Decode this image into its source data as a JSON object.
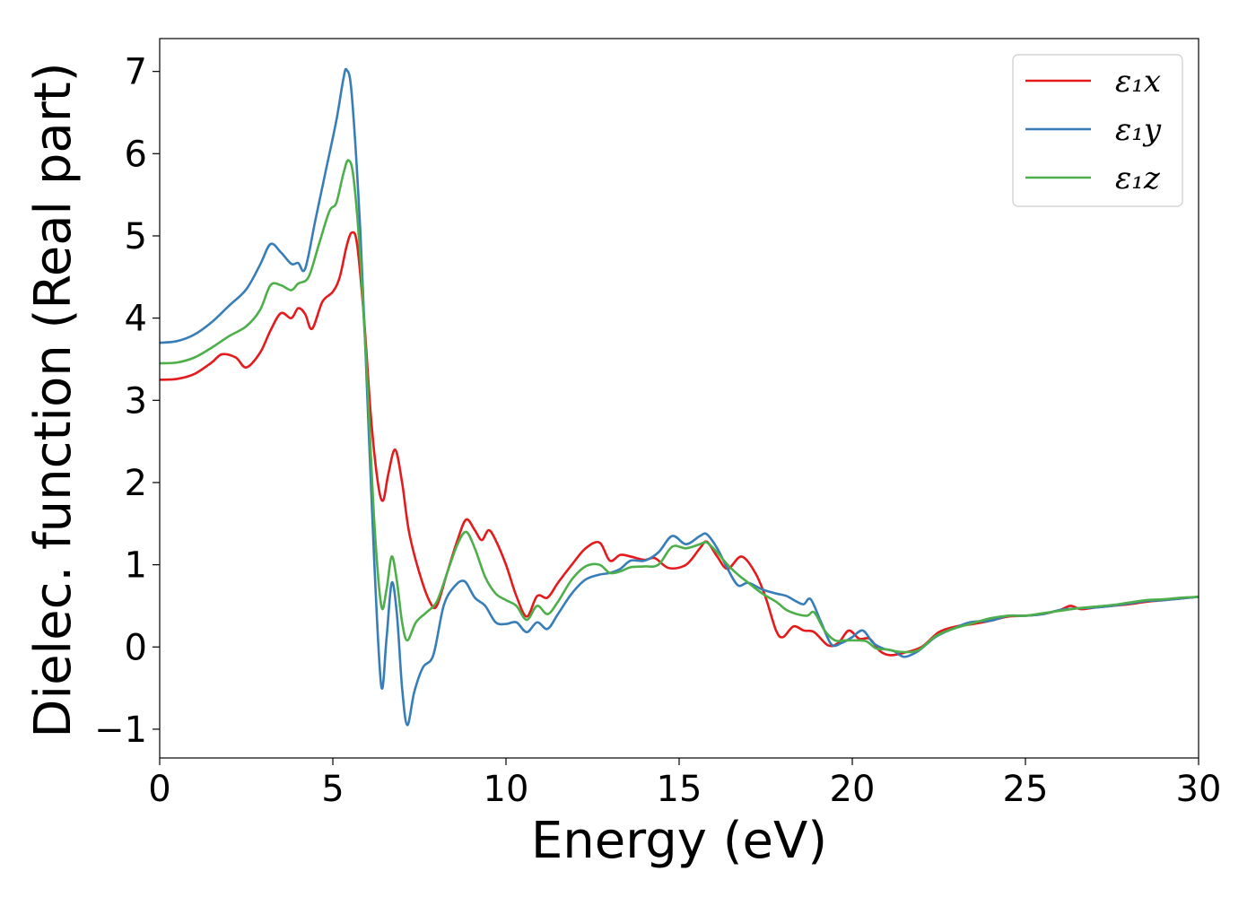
{
  "chart_data": {
    "type": "line",
    "title": "",
    "xlabel": "Energy (eV)",
    "ylabel": "Dielec. function (Real part)",
    "xlim": [
      0,
      30
    ],
    "ylim": [
      -1.35,
      7.4
    ],
    "xticks": [
      0,
      5,
      10,
      15,
      20,
      25,
      30
    ],
    "xtick_labels": [
      "0",
      "5",
      "10",
      "15",
      "20",
      "25",
      "30"
    ],
    "yticks": [
      -1,
      0,
      1,
      2,
      3,
      4,
      5,
      6,
      7
    ],
    "ytick_labels": [
      "−1",
      "0",
      "1",
      "2",
      "3",
      "4",
      "5",
      "6",
      "7"
    ],
    "grid": false,
    "legend_position": "top-right",
    "series": [
      {
        "name": "ε₁x",
        "color": "#e41a1c",
        "points": [
          [
            0,
            3.25
          ],
          [
            0.5,
            3.26
          ],
          [
            1.0,
            3.32
          ],
          [
            1.5,
            3.46
          ],
          [
            1.8,
            3.56
          ],
          [
            2.2,
            3.52
          ],
          [
            2.5,
            3.4
          ],
          [
            2.9,
            3.58
          ],
          [
            3.2,
            3.85
          ],
          [
            3.5,
            4.06
          ],
          [
            3.8,
            4.0
          ],
          [
            4.0,
            4.12
          ],
          [
            4.2,
            4.05
          ],
          [
            4.4,
            3.87
          ],
          [
            4.7,
            4.2
          ],
          [
            5.0,
            4.32
          ],
          [
            5.2,
            4.5
          ],
          [
            5.4,
            4.88
          ],
          [
            5.55,
            5.04
          ],
          [
            5.7,
            4.9
          ],
          [
            5.9,
            4.0
          ],
          [
            6.1,
            2.8
          ],
          [
            6.3,
            2.0
          ],
          [
            6.45,
            1.78
          ],
          [
            6.6,
            2.1
          ],
          [
            6.8,
            2.4
          ],
          [
            7.0,
            2.0
          ],
          [
            7.2,
            1.4
          ],
          [
            7.5,
            0.9
          ],
          [
            7.8,
            0.55
          ],
          [
            8.0,
            0.5
          ],
          [
            8.3,
            0.9
          ],
          [
            8.6,
            1.3
          ],
          [
            8.85,
            1.55
          ],
          [
            9.1,
            1.42
          ],
          [
            9.3,
            1.3
          ],
          [
            9.5,
            1.42
          ],
          [
            9.7,
            1.3
          ],
          [
            10.0,
            1.0
          ],
          [
            10.3,
            0.62
          ],
          [
            10.6,
            0.37
          ],
          [
            10.9,
            0.62
          ],
          [
            11.2,
            0.6
          ],
          [
            11.5,
            0.78
          ],
          [
            11.9,
            1.0
          ],
          [
            12.3,
            1.2
          ],
          [
            12.7,
            1.27
          ],
          [
            13.0,
            1.05
          ],
          [
            13.3,
            1.12
          ],
          [
            13.6,
            1.1
          ],
          [
            14.0,
            1.06
          ],
          [
            14.3,
            1.08
          ],
          [
            14.7,
            0.96
          ],
          [
            15.2,
            1.0
          ],
          [
            15.6,
            1.2
          ],
          [
            15.8,
            1.28
          ],
          [
            16.1,
            1.1
          ],
          [
            16.4,
            0.95
          ],
          [
            16.8,
            1.1
          ],
          [
            17.2,
            0.9
          ],
          [
            17.5,
            0.6
          ],
          [
            17.8,
            0.2
          ],
          [
            18.0,
            0.12
          ],
          [
            18.3,
            0.25
          ],
          [
            18.6,
            0.2
          ],
          [
            18.9,
            0.18
          ],
          [
            19.3,
            0.02
          ],
          [
            19.6,
            0.05
          ],
          [
            19.9,
            0.2
          ],
          [
            20.2,
            0.1
          ],
          [
            20.5,
            0.1
          ],
          [
            20.8,
            -0.05
          ],
          [
            21.1,
            -0.1
          ],
          [
            21.5,
            -0.07
          ],
          [
            22.0,
            0.0
          ],
          [
            22.5,
            0.18
          ],
          [
            23.0,
            0.25
          ],
          [
            23.5,
            0.28
          ],
          [
            24.0,
            0.32
          ],
          [
            24.5,
            0.37
          ],
          [
            25.0,
            0.38
          ],
          [
            25.5,
            0.4
          ],
          [
            26.0,
            0.45
          ],
          [
            26.3,
            0.5
          ],
          [
            26.6,
            0.46
          ],
          [
            27.0,
            0.48
          ],
          [
            27.5,
            0.5
          ],
          [
            28.0,
            0.52
          ],
          [
            28.5,
            0.55
          ],
          [
            29.0,
            0.57
          ],
          [
            29.5,
            0.59
          ],
          [
            30.0,
            0.61
          ]
        ]
      },
      {
        "name": "ε₁y",
        "color": "#377eb8",
        "points": [
          [
            0,
            3.7
          ],
          [
            0.5,
            3.72
          ],
          [
            1.0,
            3.8
          ],
          [
            1.5,
            3.95
          ],
          [
            2.0,
            4.15
          ],
          [
            2.5,
            4.35
          ],
          [
            2.9,
            4.65
          ],
          [
            3.2,
            4.9
          ],
          [
            3.5,
            4.8
          ],
          [
            3.8,
            4.66
          ],
          [
            4.0,
            4.67
          ],
          [
            4.2,
            4.6
          ],
          [
            4.5,
            5.2
          ],
          [
            4.8,
            5.8
          ],
          [
            5.1,
            6.4
          ],
          [
            5.3,
            6.9
          ],
          [
            5.4,
            7.02
          ],
          [
            5.55,
            6.7
          ],
          [
            5.8,
            5.0
          ],
          [
            6.0,
            3.0
          ],
          [
            6.2,
            1.0
          ],
          [
            6.4,
            -0.48
          ],
          [
            6.55,
            0.1
          ],
          [
            6.7,
            0.78
          ],
          [
            6.85,
            0.4
          ],
          [
            7.0,
            -0.5
          ],
          [
            7.15,
            -0.95
          ],
          [
            7.35,
            -0.55
          ],
          [
            7.6,
            -0.25
          ],
          [
            7.9,
            -0.1
          ],
          [
            8.2,
            0.5
          ],
          [
            8.5,
            0.73
          ],
          [
            8.8,
            0.8
          ],
          [
            9.1,
            0.6
          ],
          [
            9.4,
            0.5
          ],
          [
            9.7,
            0.3
          ],
          [
            10.0,
            0.28
          ],
          [
            10.3,
            0.3
          ],
          [
            10.6,
            0.18
          ],
          [
            10.9,
            0.3
          ],
          [
            11.2,
            0.22
          ],
          [
            11.5,
            0.4
          ],
          [
            11.9,
            0.65
          ],
          [
            12.3,
            0.82
          ],
          [
            12.7,
            0.88
          ],
          [
            13.0,
            0.9
          ],
          [
            13.3,
            0.95
          ],
          [
            13.6,
            1.05
          ],
          [
            14.0,
            1.05
          ],
          [
            14.4,
            1.15
          ],
          [
            14.8,
            1.35
          ],
          [
            15.2,
            1.25
          ],
          [
            15.6,
            1.35
          ],
          [
            15.8,
            1.37
          ],
          [
            16.1,
            1.2
          ],
          [
            16.4,
            0.95
          ],
          [
            16.7,
            0.75
          ],
          [
            17.0,
            0.78
          ],
          [
            17.4,
            0.7
          ],
          [
            17.8,
            0.65
          ],
          [
            18.1,
            0.62
          ],
          [
            18.4,
            0.55
          ],
          [
            18.6,
            0.52
          ],
          [
            18.8,
            0.58
          ],
          [
            19.1,
            0.3
          ],
          [
            19.4,
            0.03
          ],
          [
            19.7,
            0.05
          ],
          [
            20.0,
            0.12
          ],
          [
            20.3,
            0.2
          ],
          [
            20.6,
            0.05
          ],
          [
            20.9,
            -0.02
          ],
          [
            21.2,
            -0.05
          ],
          [
            21.5,
            -0.12
          ],
          [
            21.9,
            -0.05
          ],
          [
            22.4,
            0.12
          ],
          [
            22.9,
            0.22
          ],
          [
            23.4,
            0.3
          ],
          [
            24.0,
            0.32
          ],
          [
            24.5,
            0.38
          ],
          [
            25.0,
            0.38
          ],
          [
            25.5,
            0.4
          ],
          [
            26.0,
            0.45
          ],
          [
            26.5,
            0.47
          ],
          [
            27.0,
            0.48
          ],
          [
            27.5,
            0.5
          ],
          [
            28.0,
            0.53
          ],
          [
            28.5,
            0.56
          ],
          [
            29.0,
            0.57
          ],
          [
            29.5,
            0.59
          ],
          [
            30.0,
            0.61
          ]
        ]
      },
      {
        "name": "ε₁z",
        "color": "#4daf4a",
        "points": [
          [
            0,
            3.45
          ],
          [
            0.5,
            3.46
          ],
          [
            1.0,
            3.52
          ],
          [
            1.5,
            3.64
          ],
          [
            2.0,
            3.78
          ],
          [
            2.5,
            3.9
          ],
          [
            2.9,
            4.1
          ],
          [
            3.2,
            4.4
          ],
          [
            3.5,
            4.4
          ],
          [
            3.8,
            4.34
          ],
          [
            4.0,
            4.42
          ],
          [
            4.3,
            4.5
          ],
          [
            4.6,
            4.9
          ],
          [
            4.9,
            5.3
          ],
          [
            5.1,
            5.4
          ],
          [
            5.3,
            5.75
          ],
          [
            5.45,
            5.92
          ],
          [
            5.6,
            5.7
          ],
          [
            5.8,
            4.7
          ],
          [
            6.0,
            3.2
          ],
          [
            6.2,
            1.5
          ],
          [
            6.4,
            0.5
          ],
          [
            6.55,
            0.7
          ],
          [
            6.7,
            1.1
          ],
          [
            6.85,
            0.8
          ],
          [
            7.0,
            0.3
          ],
          [
            7.15,
            0.08
          ],
          [
            7.4,
            0.3
          ],
          [
            7.7,
            0.42
          ],
          [
            8.0,
            0.55
          ],
          [
            8.3,
            0.9
          ],
          [
            8.6,
            1.25
          ],
          [
            8.85,
            1.4
          ],
          [
            9.1,
            1.2
          ],
          [
            9.4,
            0.85
          ],
          [
            9.7,
            0.65
          ],
          [
            10.0,
            0.57
          ],
          [
            10.3,
            0.5
          ],
          [
            10.6,
            0.33
          ],
          [
            10.9,
            0.5
          ],
          [
            11.2,
            0.4
          ],
          [
            11.5,
            0.55
          ],
          [
            11.9,
            0.82
          ],
          [
            12.3,
            0.98
          ],
          [
            12.7,
            1.0
          ],
          [
            13.0,
            0.9
          ],
          [
            13.3,
            0.92
          ],
          [
            13.6,
            0.97
          ],
          [
            14.0,
            0.98
          ],
          [
            14.4,
            1.0
          ],
          [
            14.8,
            1.22
          ],
          [
            15.2,
            1.2
          ],
          [
            15.6,
            1.25
          ],
          [
            15.8,
            1.27
          ],
          [
            16.1,
            1.15
          ],
          [
            16.4,
            1.0
          ],
          [
            16.7,
            0.88
          ],
          [
            17.0,
            0.78
          ],
          [
            17.4,
            0.65
          ],
          [
            17.8,
            0.55
          ],
          [
            18.1,
            0.45
          ],
          [
            18.4,
            0.4
          ],
          [
            18.7,
            0.38
          ],
          [
            18.9,
            0.42
          ],
          [
            19.2,
            0.2
          ],
          [
            19.5,
            0.08
          ],
          [
            19.8,
            0.08
          ],
          [
            20.1,
            0.08
          ],
          [
            20.4,
            0.07
          ],
          [
            20.7,
            -0.02
          ],
          [
            21.0,
            -0.03
          ],
          [
            21.4,
            -0.06
          ],
          [
            21.9,
            -0.04
          ],
          [
            22.4,
            0.13
          ],
          [
            22.9,
            0.22
          ],
          [
            23.4,
            0.28
          ],
          [
            24.0,
            0.35
          ],
          [
            24.5,
            0.38
          ],
          [
            25.0,
            0.38
          ],
          [
            25.5,
            0.41
          ],
          [
            26.0,
            0.44
          ],
          [
            26.5,
            0.47
          ],
          [
            27.0,
            0.49
          ],
          [
            27.5,
            0.51
          ],
          [
            28.0,
            0.54
          ],
          [
            28.5,
            0.57
          ],
          [
            29.0,
            0.58
          ],
          [
            29.5,
            0.6
          ],
          [
            30.0,
            0.61
          ]
        ]
      }
    ]
  }
}
